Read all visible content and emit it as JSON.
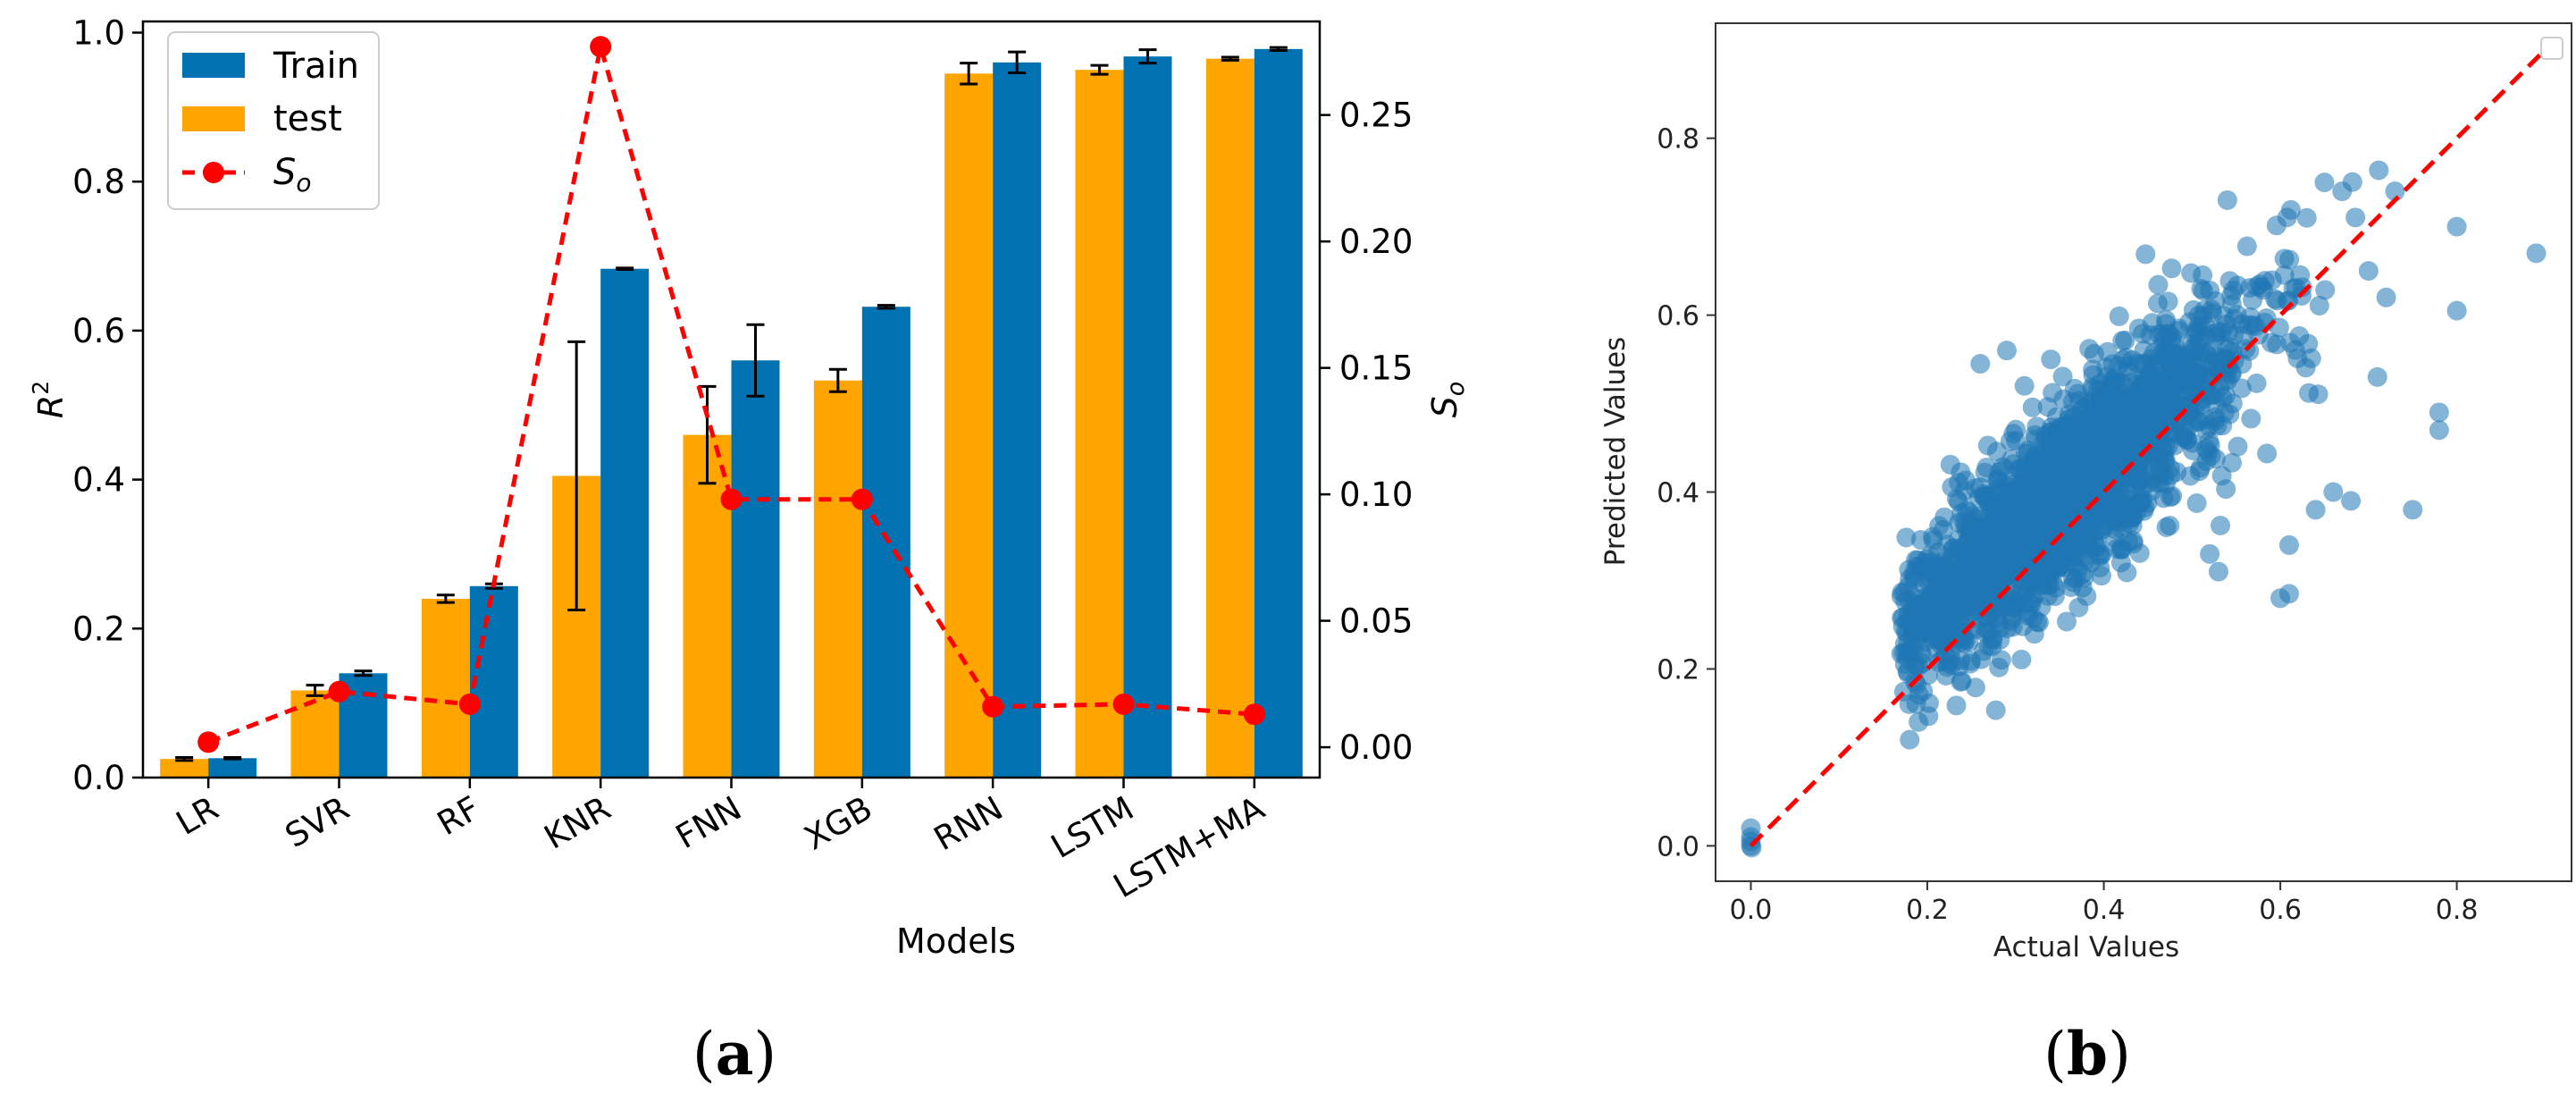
{
  "chart_data": [
    {
      "panel": "a",
      "type": "bar",
      "caption": "(a)",
      "caption_parts": [
        "(",
        "a",
        ")"
      ],
      "categories": [
        "LR",
        "SVR",
        "RF",
        "KNR",
        "FNN",
        "XGB",
        "RNN",
        "LSTM",
        "LSTM+MA"
      ],
      "series": [
        {
          "name": "test",
          "color": "#FFA500",
          "values": [
            0.025,
            0.117,
            0.24,
            0.405,
            0.46,
            0.533,
            0.945,
            0.95,
            0.965
          ],
          "errors": [
            0.002,
            0.007,
            0.005,
            0.18,
            0.065,
            0.015,
            0.014,
            0.006,
            0.002
          ]
        },
        {
          "name": "Train",
          "color": "#0072B2",
          "values": [
            0.026,
            0.14,
            0.257,
            0.683,
            0.56,
            0.632,
            0.96,
            0.968,
            0.978
          ],
          "errors": [
            0.001,
            0.003,
            0.003,
            0.001,
            0.048,
            0.002,
            0.014,
            0.009,
            0.002
          ]
        }
      ],
      "secondary_series": {
        "name": "S",
        "name_subscript": "o",
        "color": "#FF0000",
        "style": "dashed-with-markers",
        "values": [
          0.002,
          0.022,
          0.017,
          0.277,
          0.098,
          0.098,
          0.016,
          0.017,
          0.013
        ]
      },
      "legend_order": [
        "Train",
        "test",
        "S"
      ],
      "legend_position": "top-left",
      "xlabel": "Models",
      "ylabel": "R",
      "ylabel_superscript": "2",
      "y2label": "S",
      "y2label_subscript": "o",
      "ylim": [
        0,
        1.015
      ],
      "y2lim": [
        -0.012,
        0.287
      ],
      "yticks": [
        "0.0",
        "0.2",
        "0.4",
        "0.6",
        "0.8",
        "1.0"
      ],
      "y2ticks": [
        "0.00",
        "0.05",
        "0.10",
        "0.15",
        "0.20",
        "0.25"
      ],
      "grid": false
    },
    {
      "panel": "b",
      "type": "scatter",
      "caption": "(b)",
      "caption_parts": [
        "(",
        "b",
        ")"
      ],
      "xlabel": "Actual Values",
      "ylabel": "Predicted Values",
      "xlim": [
        -0.04,
        0.93
      ],
      "ylim": [
        -0.04,
        0.93
      ],
      "xticks": [
        "0.0",
        "0.2",
        "0.4",
        "0.6",
        "0.8"
      ],
      "yticks": [
        "0.0",
        "0.2",
        "0.4",
        "0.6",
        "0.8"
      ],
      "point_color": "#1F77B4",
      "reference_line": {
        "from": [
          0.0,
          0.0
        ],
        "to": [
          0.9,
          0.9
        ],
        "color": "#FF0000",
        "style": "dashed"
      },
      "zero_cluster": [
        [
          0.0,
          0.0
        ],
        [
          0.0,
          0.005
        ],
        [
          0.0,
          0.01
        ],
        [
          0.0,
          0.02
        ],
        [
          0.001,
          -0.002
        ]
      ],
      "outliers": [
        [
          0.89,
          0.67
        ],
        [
          0.8,
          0.7
        ],
        [
          0.8,
          0.605
        ],
        [
          0.78,
          0.47
        ],
        [
          0.78,
          0.49
        ],
        [
          0.73,
          0.74
        ],
        [
          0.7,
          0.65
        ],
        [
          0.72,
          0.62
        ],
        [
          0.71,
          0.53
        ],
        [
          0.68,
          0.39
        ],
        [
          0.64,
          0.38
        ],
        [
          0.66,
          0.4
        ],
        [
          0.61,
          0.34
        ],
        [
          0.54,
          0.73
        ],
        [
          0.52,
          0.33
        ],
        [
          0.53,
          0.31
        ],
        [
          0.18,
          0.12
        ],
        [
          0.19,
          0.14
        ],
        [
          0.6,
          0.28
        ],
        [
          0.61,
          0.285
        ],
        [
          0.29,
          0.56
        ],
        [
          0.26,
          0.545
        ],
        [
          0.34,
          0.55
        ],
        [
          0.31,
          0.52
        ],
        [
          0.63,
          0.71
        ],
        [
          0.65,
          0.75
        ],
        [
          0.67,
          0.74
        ],
        [
          0.75,
          0.38
        ]
      ],
      "bulk": {
        "n": 2200,
        "x_range": [
          0.17,
          0.72
        ],
        "trend": [
          0.1,
          0.83
        ],
        "x_mean": 0.36,
        "x_sd": 0.1,
        "residual_sd": 0.045
      },
      "legend_position": "top-right",
      "grid": false
    }
  ]
}
